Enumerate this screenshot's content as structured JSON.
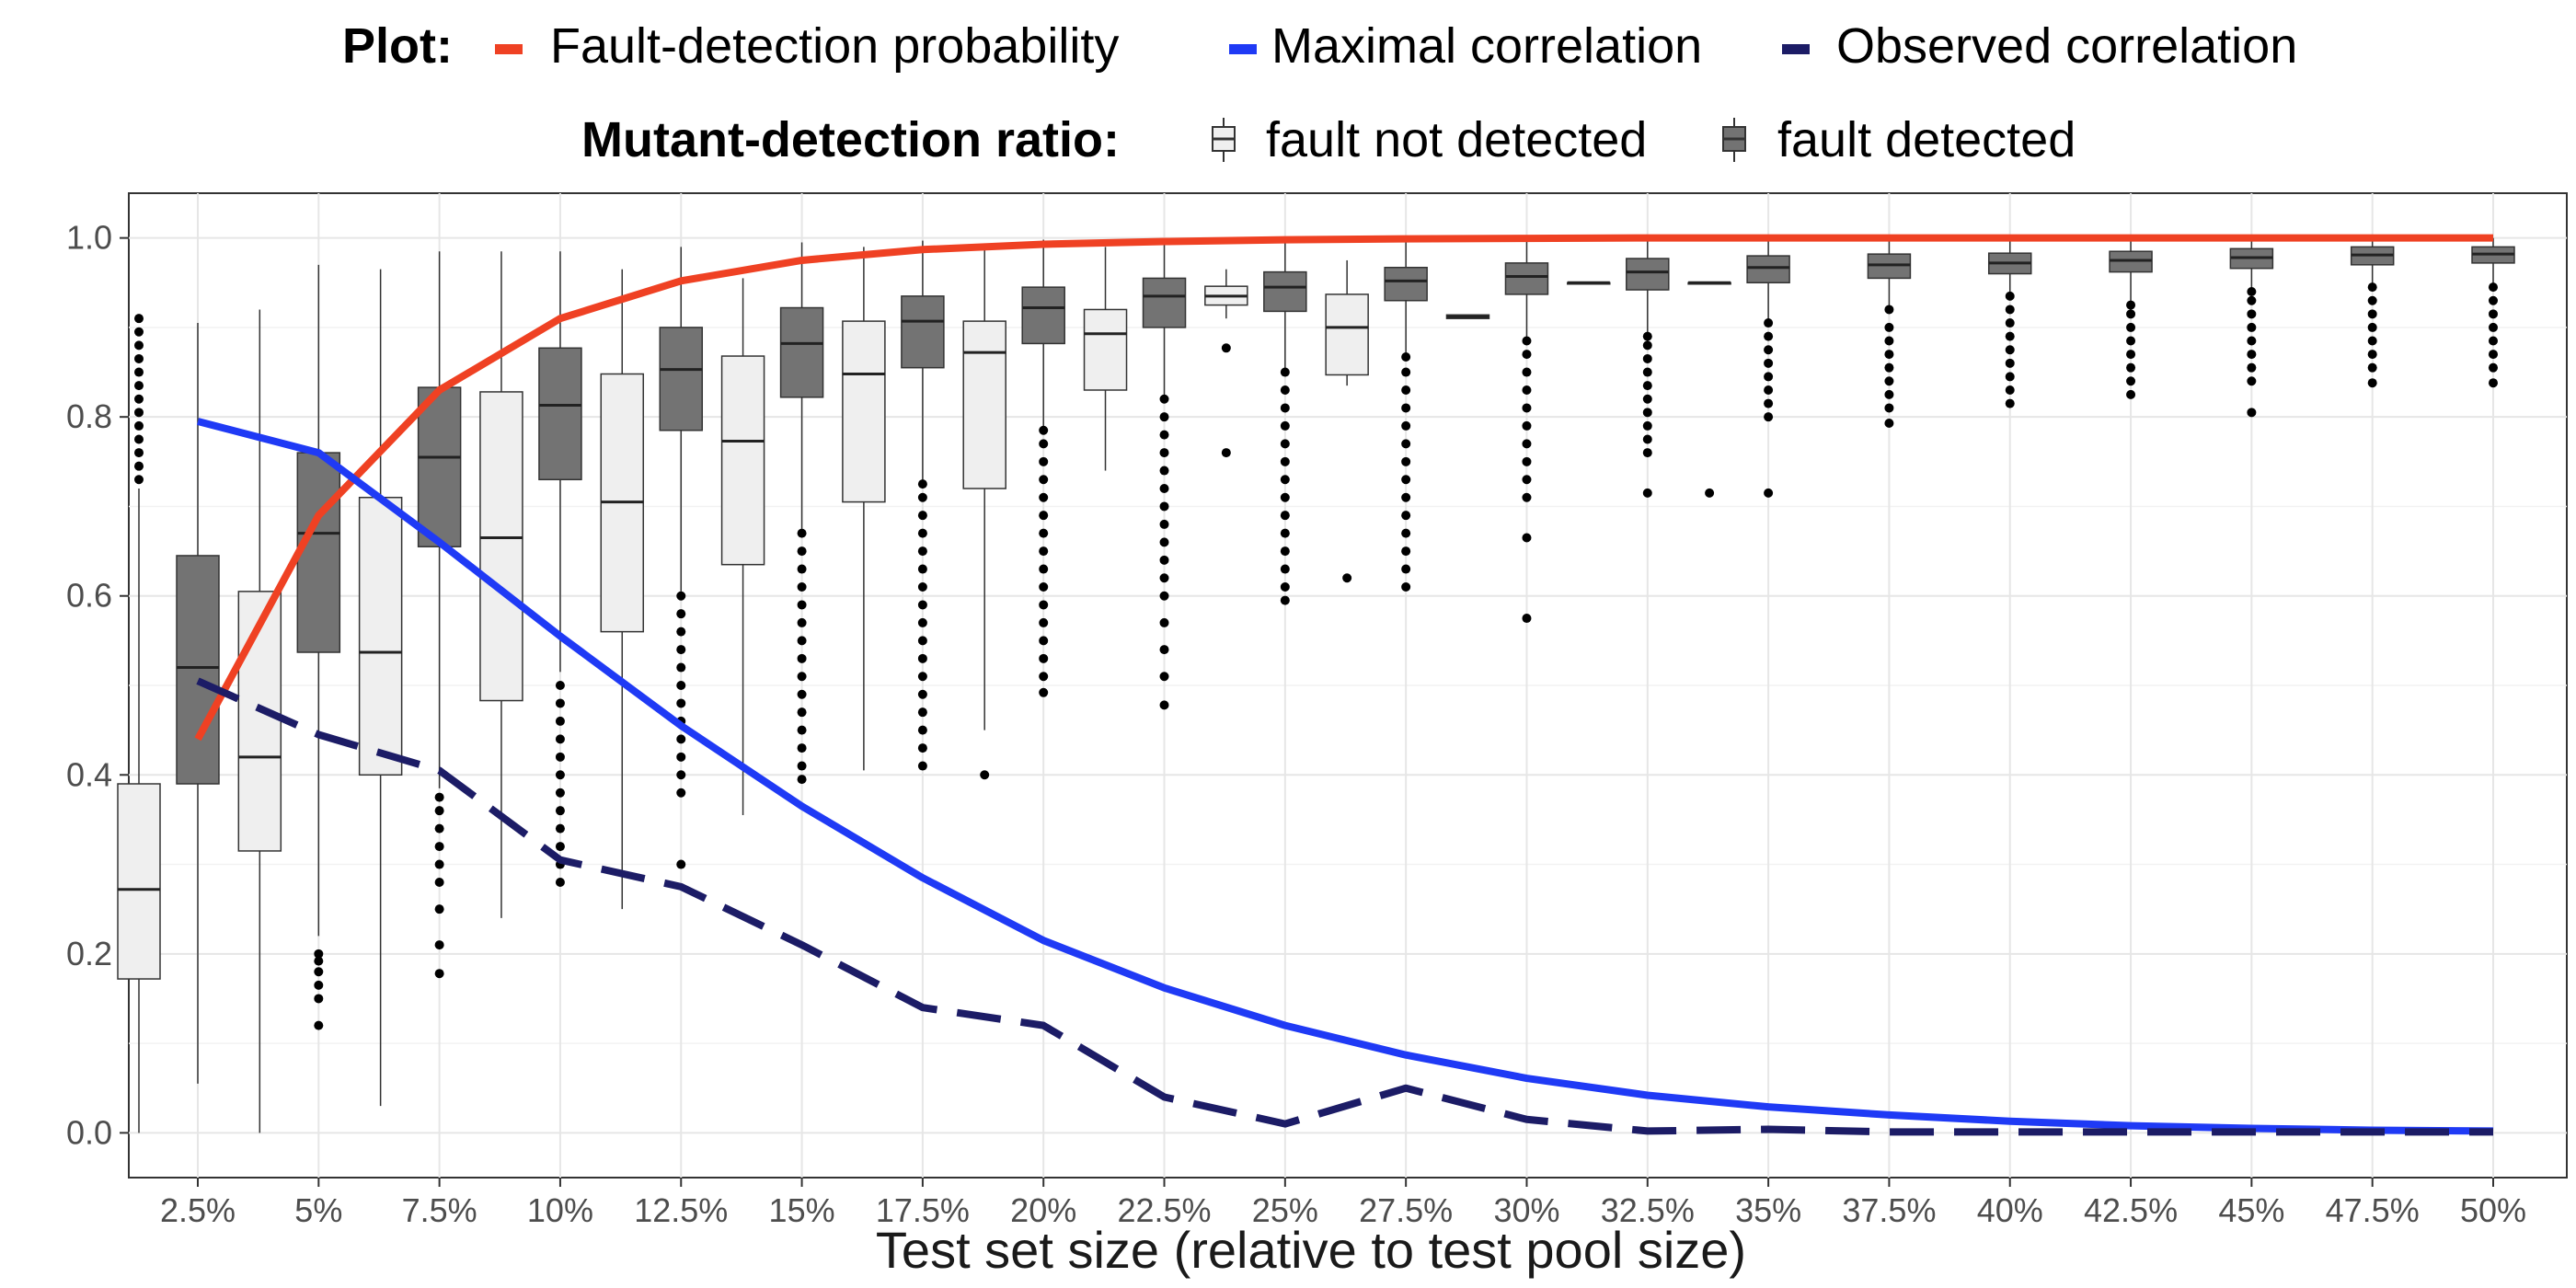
{
  "chart_data": {
    "type": "boxplot-with-lines",
    "title": "",
    "xlabel": "Test set size (relative to test pool size)",
    "ylabel": "",
    "ylim": [
      -0.05,
      1.05
    ],
    "yticks": [
      0.0,
      0.2,
      0.4,
      0.6,
      0.8,
      1.0
    ],
    "ytick_labels": [
      "0.0",
      "0.2",
      "0.4",
      "0.6",
      "0.8",
      "1.0"
    ],
    "grid": true,
    "categories": [
      "2.5%",
      "5%",
      "7.5%",
      "10%",
      "12.5%",
      "15%",
      "17.5%",
      "20%",
      "22.5%",
      "25%",
      "27.5%",
      "30%",
      "32.5%",
      "35%",
      "37.5%",
      "40%",
      "42.5%",
      "45%",
      "47.5%",
      "50%"
    ],
    "legend": {
      "plot_title": "Plot:",
      "plot_items": [
        {
          "label": "Fault-detection probability",
          "color": "#ef4123",
          "style": "solid"
        },
        {
          "label": "Maximal correlation",
          "color": "#1f3af5",
          "style": "solid"
        },
        {
          "label": "Observed correlation",
          "color": "#1c1c66",
          "style": "dashed"
        }
      ],
      "box_title": "Mutant-detection ratio:",
      "box_items": [
        {
          "label": "fault not detected",
          "fill": "#efefef"
        },
        {
          "label": "fault detected",
          "fill": "#737373"
        }
      ]
    },
    "series": [
      {
        "name": "Fault-detection probability",
        "color": "#ef4123",
        "values": [
          0.44,
          0.69,
          0.83,
          0.91,
          0.952,
          0.975,
          0.987,
          0.993,
          0.996,
          0.998,
          0.999,
          0.9995,
          1.0,
          1.0,
          1.0,
          1.0,
          1.0,
          1.0,
          1.0,
          1.0
        ]
      },
      {
        "name": "Maximal correlation",
        "color": "#1f3af5",
        "values": [
          0.795,
          0.76,
          0.66,
          0.555,
          0.455,
          0.365,
          0.285,
          0.215,
          0.162,
          0.12,
          0.087,
          0.061,
          0.042,
          0.029,
          0.02,
          0.013,
          0.008,
          0.005,
          0.003,
          0.002
        ]
      },
      {
        "name": "Observed correlation",
        "color": "#1c1c66",
        "values": [
          0.505,
          0.445,
          0.405,
          0.305,
          0.275,
          0.21,
          0.14,
          0.12,
          0.04,
          0.01,
          0.05,
          0.015,
          0.002,
          0.004,
          0.001,
          0.001,
          0.001,
          0.001,
          0.001,
          0.001
        ]
      }
    ],
    "boxes": {
      "fault_not_detected": [
        {
          "wl": 0.0,
          "q1": 0.172,
          "med": 0.272,
          "q3": 0.39,
          "wh": 0.72,
          "outliers": [
            0.73,
            0.745,
            0.76,
            0.775,
            0.79,
            0.805,
            0.82,
            0.835,
            0.85,
            0.865,
            0.88,
            0.895,
            0.91
          ]
        },
        {
          "wl": 0.0,
          "q1": 0.315,
          "med": 0.42,
          "q3": 0.605,
          "wh": 0.92,
          "outliers": []
        },
        {
          "wl": 0.03,
          "q1": 0.4,
          "med": 0.537,
          "q3": 0.71,
          "wh": 0.965,
          "outliers": []
        },
        {
          "wl": 0.24,
          "q1": 0.483,
          "med": 0.665,
          "q3": 0.828,
          "wh": 0.985,
          "outliers": []
        },
        {
          "wl": 0.25,
          "q1": 0.56,
          "med": 0.705,
          "q3": 0.848,
          "wh": 0.965,
          "outliers": []
        },
        {
          "wl": 0.355,
          "q1": 0.635,
          "med": 0.773,
          "q3": 0.868,
          "wh": 0.955,
          "outliers": []
        },
        {
          "wl": 0.405,
          "q1": 0.705,
          "med": 0.848,
          "q3": 0.907,
          "wh": 0.99,
          "outliers": []
        },
        {
          "wl": 0.45,
          "q1": 0.72,
          "med": 0.872,
          "q3": 0.907,
          "wh": 0.99,
          "outliers": [
            0.4
          ]
        },
        {
          "wl": 0.74,
          "q1": 0.83,
          "med": 0.893,
          "q3": 0.92,
          "wh": 0.99,
          "outliers": []
        },
        {
          "wl": 0.91,
          "q1": 0.925,
          "med": 0.935,
          "q3": 0.946,
          "wh": 0.965,
          "outliers": [
            0.76,
            0.877
          ]
        },
        {
          "wl": 0.835,
          "q1": 0.847,
          "med": 0.9,
          "q3": 0.937,
          "wh": 0.975,
          "outliers": [
            0.62
          ]
        },
        {
          "wl": 0.91,
          "q1": 0.91,
          "med": 0.912,
          "q3": 0.914,
          "wh": 0.914,
          "outliers": []
        },
        {
          "wl": 0.95,
          "q1": 0.95,
          "med": 0.95,
          "q3": 0.95,
          "wh": 0.95,
          "outliers": []
        },
        {
          "wl": 0.95,
          "q1": 0.95,
          "med": 0.95,
          "q3": 0.95,
          "wh": 0.95,
          "outliers": [
            0.715
          ]
        },
        null,
        null,
        null,
        null,
        null,
        null
      ],
      "fault_detected": [
        {
          "wl": 0.055,
          "q1": 0.39,
          "med": 0.52,
          "q3": 0.645,
          "wh": 0.905,
          "outliers": []
        },
        {
          "wl": 0.22,
          "q1": 0.537,
          "med": 0.67,
          "q3": 0.76,
          "wh": 0.97,
          "outliers": [
            0.12,
            0.15,
            0.165,
            0.18,
            0.192,
            0.2
          ]
        },
        {
          "wl": 0.385,
          "q1": 0.655,
          "med": 0.755,
          "q3": 0.833,
          "wh": 0.985,
          "outliers": [
            0.178,
            0.21,
            0.25,
            0.28,
            0.3,
            0.32,
            0.34,
            0.36,
            0.375
          ]
        },
        {
          "wl": 0.515,
          "q1": 0.73,
          "med": 0.813,
          "q3": 0.877,
          "wh": 0.985,
          "outliers": [
            0.28,
            0.3,
            0.32,
            0.34,
            0.36,
            0.38,
            0.4,
            0.42,
            0.44,
            0.46,
            0.48,
            0.5
          ]
        },
        {
          "wl": 0.605,
          "q1": 0.785,
          "med": 0.853,
          "q3": 0.9,
          "wh": 0.99,
          "outliers": [
            0.3,
            0.38,
            0.4,
            0.42,
            0.44,
            0.46,
            0.48,
            0.5,
            0.52,
            0.54,
            0.56,
            0.58,
            0.6
          ]
        },
        {
          "wl": 0.675,
          "q1": 0.822,
          "med": 0.882,
          "q3": 0.922,
          "wh": 0.995,
          "outliers": [
            0.395,
            0.41,
            0.43,
            0.45,
            0.47,
            0.49,
            0.51,
            0.53,
            0.55,
            0.57,
            0.59,
            0.61,
            0.63,
            0.65,
            0.67
          ]
        },
        {
          "wl": 0.725,
          "q1": 0.855,
          "med": 0.907,
          "q3": 0.935,
          "wh": 0.997,
          "outliers": [
            0.41,
            0.43,
            0.45,
            0.47,
            0.49,
            0.51,
            0.53,
            0.55,
            0.57,
            0.59,
            0.61,
            0.63,
            0.65,
            0.67,
            0.69,
            0.71,
            0.725
          ]
        },
        {
          "wl": 0.785,
          "q1": 0.882,
          "med": 0.922,
          "q3": 0.945,
          "wh": 0.998,
          "outliers": [
            0.492,
            0.51,
            0.53,
            0.55,
            0.57,
            0.59,
            0.61,
            0.63,
            0.65,
            0.67,
            0.69,
            0.71,
            0.73,
            0.75,
            0.77,
            0.785
          ]
        },
        {
          "wl": 0.82,
          "q1": 0.9,
          "med": 0.935,
          "q3": 0.955,
          "wh": 0.998,
          "outliers": [
            0.478,
            0.51,
            0.54,
            0.57,
            0.6,
            0.62,
            0.64,
            0.66,
            0.68,
            0.7,
            0.72,
            0.74,
            0.76,
            0.78,
            0.8,
            0.82
          ]
        },
        {
          "wl": 0.85,
          "q1": 0.918,
          "med": 0.945,
          "q3": 0.962,
          "wh": 0.999,
          "outliers": [
            0.595,
            0.61,
            0.63,
            0.65,
            0.67,
            0.69,
            0.71,
            0.73,
            0.75,
            0.77,
            0.79,
            0.81,
            0.83,
            0.85
          ]
        },
        {
          "wl": 0.867,
          "q1": 0.93,
          "med": 0.952,
          "q3": 0.967,
          "wh": 0.999,
          "outliers": [
            0.61,
            0.63,
            0.65,
            0.67,
            0.69,
            0.71,
            0.73,
            0.75,
            0.77,
            0.79,
            0.81,
            0.83,
            0.85,
            0.867
          ]
        },
        {
          "wl": 0.885,
          "q1": 0.937,
          "med": 0.957,
          "q3": 0.972,
          "wh": 1.0,
          "outliers": [
            0.575,
            0.665,
            0.71,
            0.73,
            0.75,
            0.77,
            0.79,
            0.81,
            0.83,
            0.85,
            0.87,
            0.885
          ]
        },
        {
          "wl": 0.89,
          "q1": 0.942,
          "med": 0.962,
          "q3": 0.977,
          "wh": 1.0,
          "outliers": [
            0.715,
            0.76,
            0.775,
            0.79,
            0.805,
            0.82,
            0.835,
            0.85,
            0.865,
            0.88,
            0.89
          ]
        },
        {
          "wl": 0.905,
          "q1": 0.95,
          "med": 0.967,
          "q3": 0.98,
          "wh": 1.0,
          "outliers": [
            0.715,
            0.8,
            0.815,
            0.83,
            0.845,
            0.86,
            0.875,
            0.89,
            0.905
          ]
        },
        {
          "wl": 0.92,
          "q1": 0.955,
          "med": 0.97,
          "q3": 0.982,
          "wh": 1.0,
          "outliers": [
            0.793,
            0.81,
            0.825,
            0.84,
            0.855,
            0.87,
            0.885,
            0.9,
            0.92
          ]
        },
        {
          "wl": 0.935,
          "q1": 0.96,
          "med": 0.972,
          "q3": 0.983,
          "wh": 1.0,
          "outliers": [
            0.815,
            0.83,
            0.845,
            0.86,
            0.875,
            0.89,
            0.905,
            0.92,
            0.935
          ]
        },
        {
          "wl": 0.925,
          "q1": 0.962,
          "med": 0.975,
          "q3": 0.985,
          "wh": 1.0,
          "outliers": [
            0.825,
            0.84,
            0.855,
            0.87,
            0.885,
            0.9,
            0.915,
            0.925
          ]
        },
        {
          "wl": 0.94,
          "q1": 0.966,
          "med": 0.978,
          "q3": 0.988,
          "wh": 1.0,
          "outliers": [
            0.805,
            0.84,
            0.855,
            0.87,
            0.885,
            0.9,
            0.915,
            0.93,
            0.94
          ]
        },
        {
          "wl": 0.945,
          "q1": 0.97,
          "med": 0.981,
          "q3": 0.99,
          "wh": 1.0,
          "outliers": [
            0.838,
            0.855,
            0.87,
            0.885,
            0.9,
            0.915,
            0.93,
            0.945
          ]
        },
        {
          "wl": 0.945,
          "q1": 0.972,
          "med": 0.982,
          "q3": 0.99,
          "wh": 1.0,
          "outliers": [
            0.838,
            0.855,
            0.87,
            0.885,
            0.9,
            0.915,
            0.93,
            0.945
          ]
        }
      ]
    }
  }
}
